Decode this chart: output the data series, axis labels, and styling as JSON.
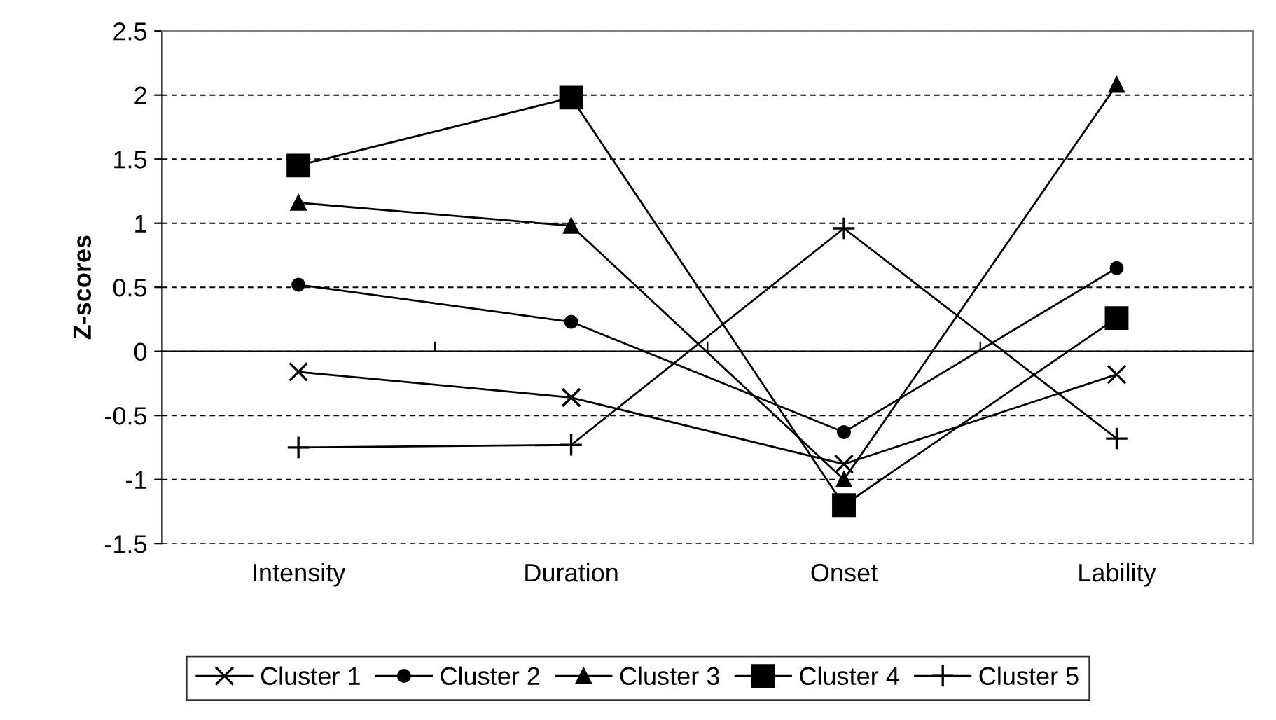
{
  "chart_data": {
    "type": "line",
    "ylabel": "Z-scores",
    "categories": [
      "Intensity",
      "Duration",
      "Onset",
      "Lability"
    ],
    "series": [
      {
        "name": "Cluster 1",
        "color": "#000000",
        "marker": "cross",
        "values": [
          -0.16,
          -0.36,
          -0.88,
          -0.18
        ]
      },
      {
        "name": "Cluster 2",
        "color": "#000000",
        "marker": "circle",
        "values": [
          0.52,
          0.23,
          -0.63,
          0.65
        ]
      },
      {
        "name": "Cluster 3",
        "color": "#000000",
        "marker": "triangle",
        "values": [
          1.16,
          0.98,
          -1.0,
          2.08
        ]
      },
      {
        "name": "Cluster 4",
        "color": "#000000",
        "marker": "square",
        "values": [
          1.45,
          1.98,
          -1.2,
          0.26
        ]
      },
      {
        "name": "Cluster 5",
        "color": "#000000",
        "marker": "plus",
        "values": [
          -0.75,
          -0.73,
          0.96,
          -0.68
        ]
      }
    ],
    "ylim": [
      -1.5,
      2.5
    ],
    "yticks": [
      -1.5,
      -1,
      -0.5,
      0,
      0.5,
      1,
      1.5,
      2,
      2.5
    ],
    "grid": "y",
    "legend": "bottom",
    "line_style": "solid"
  }
}
